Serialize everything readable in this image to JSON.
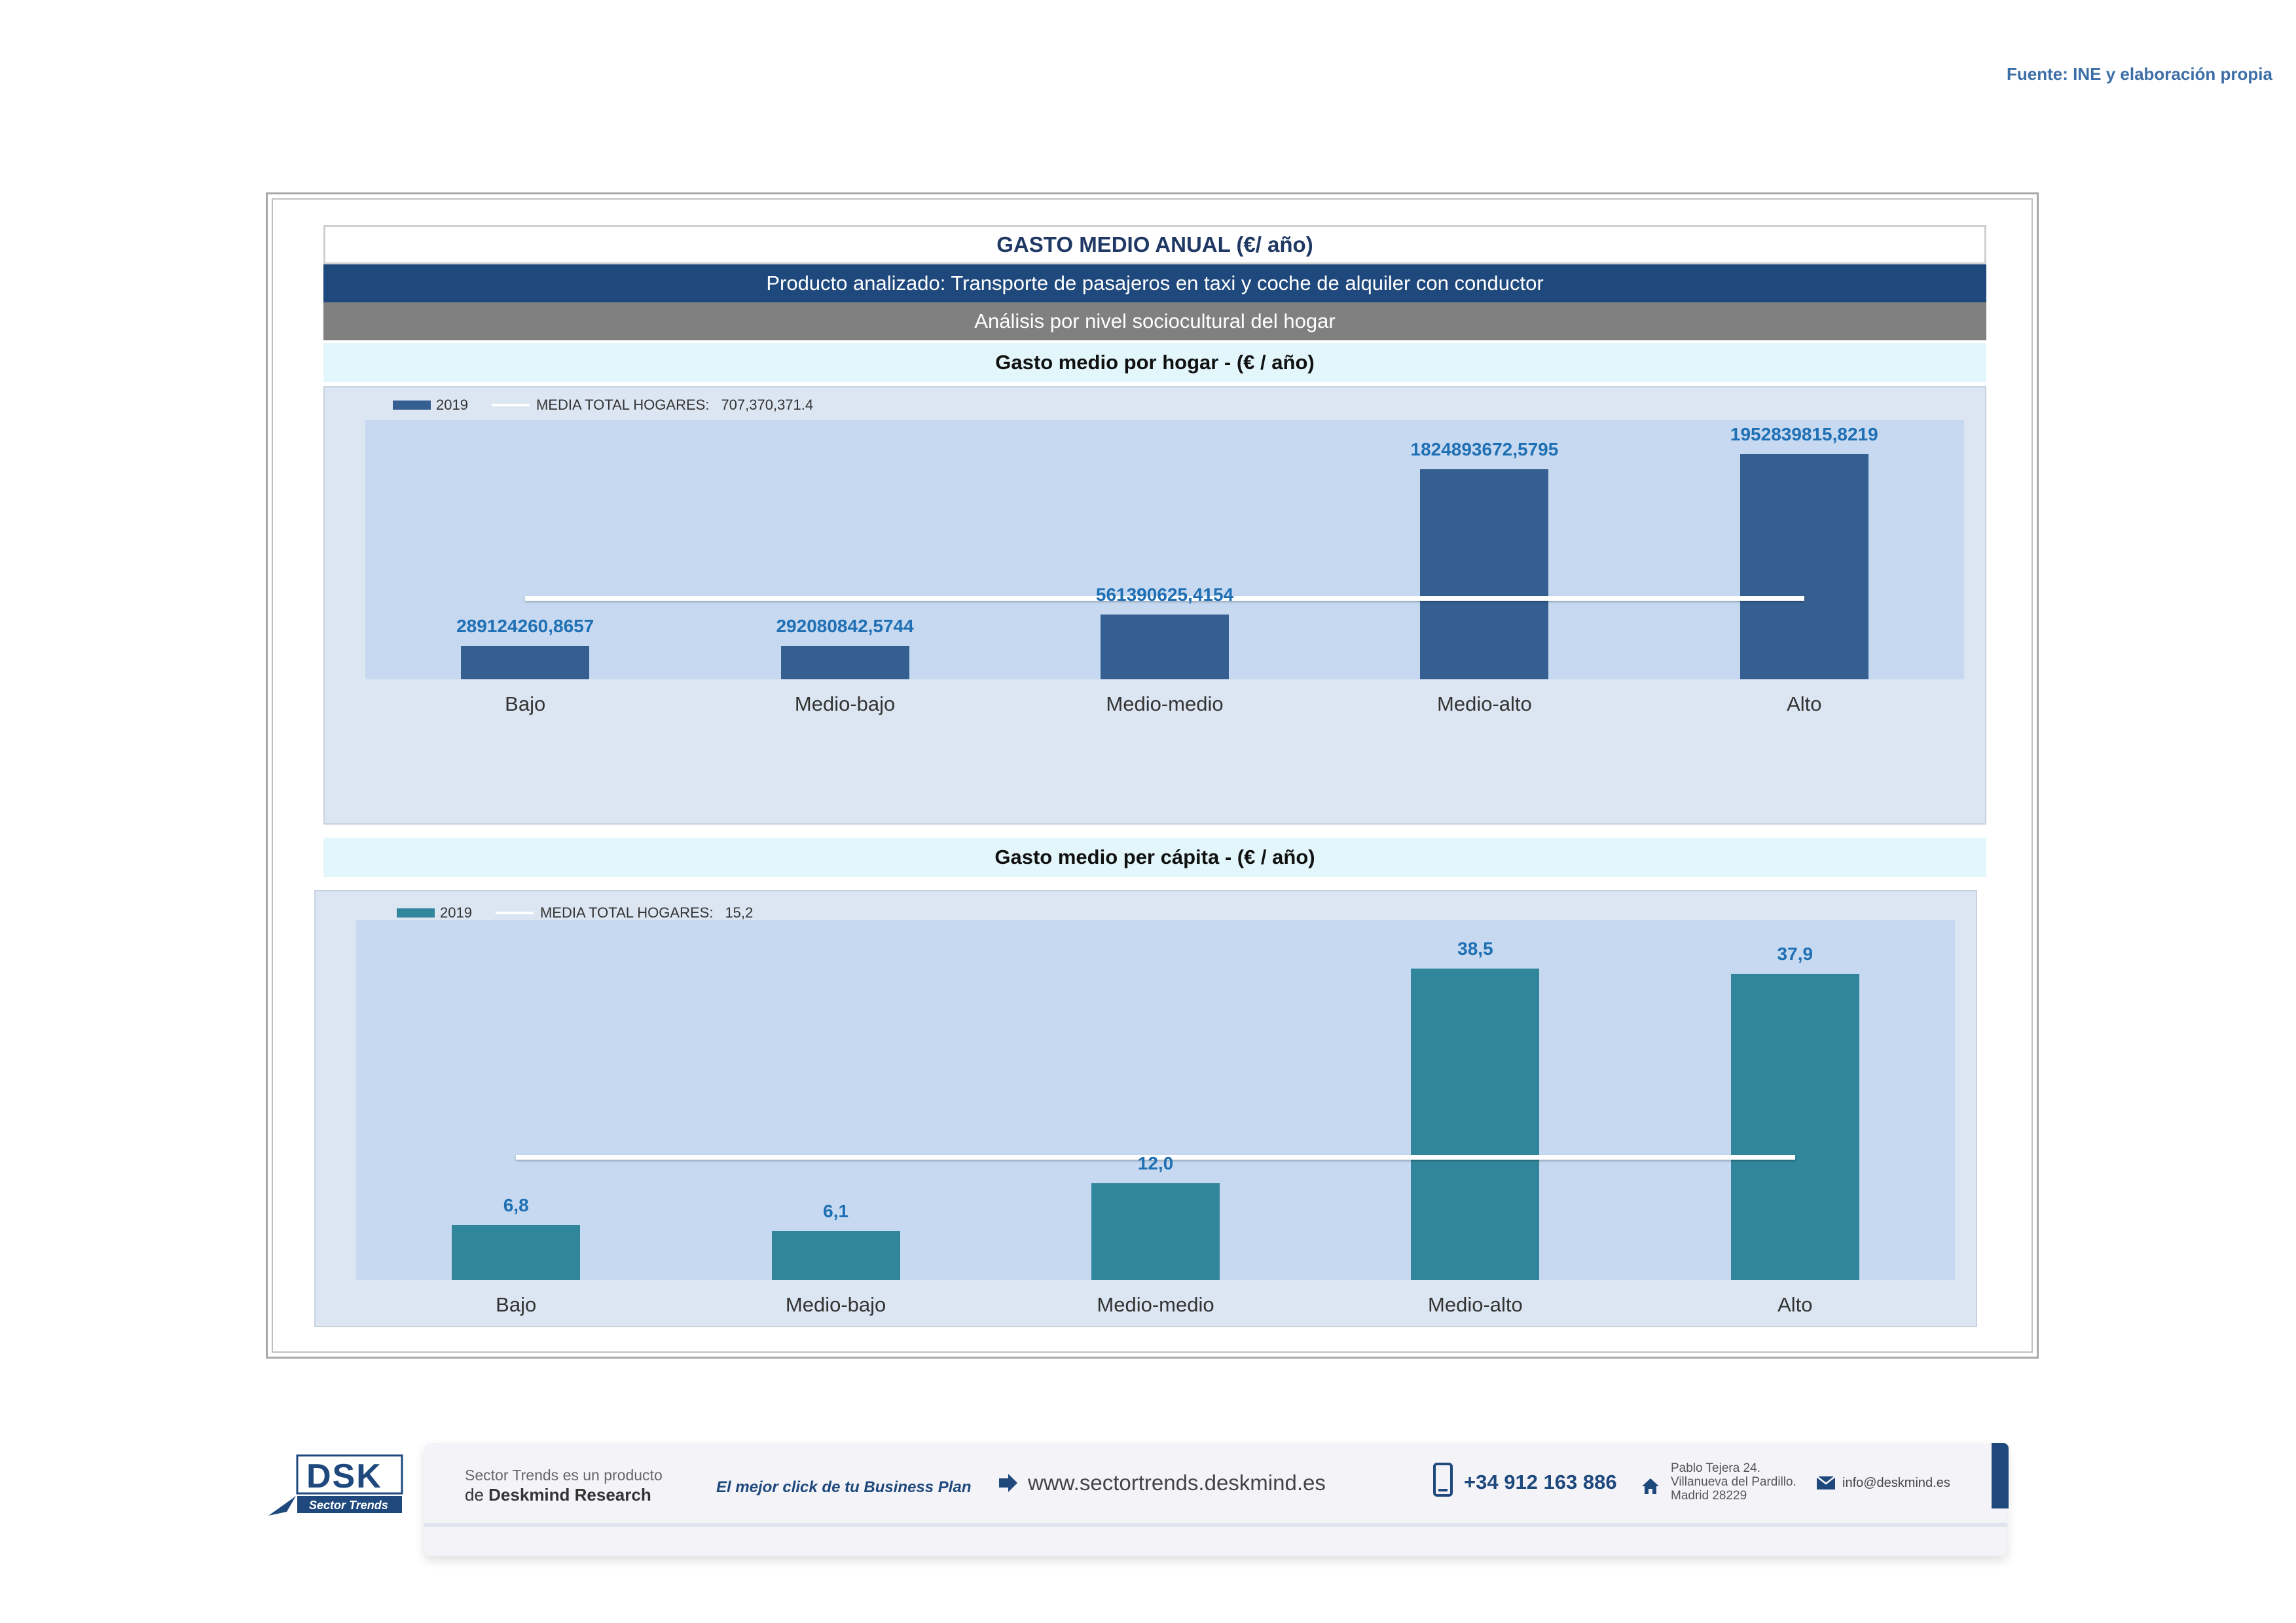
{
  "source": "Fuente: INE y elaboración propia",
  "header": {
    "title": "GASTO MEDIO ANUAL (€/ año)",
    "product": "Producto analizado: Transporte de pasajeros en taxi y coche de alquiler con conductor",
    "analysis": "Análisis por nivel sociocultural del hogar"
  },
  "chart_data": [
    {
      "type": "bar",
      "title": "Gasto medio por hogar -  (€ / año)",
      "categories": [
        "Bajo",
        "Medio-bajo",
        "Medio-medio",
        "Medio-alto",
        "Alto"
      ],
      "series": [
        {
          "name": "2019",
          "values": [
            289124260.8657,
            292080842.5744,
            561390625.4154,
            1824893672.5795,
            1952839815.8219
          ]
        }
      ],
      "data_labels": [
        "289124260,8657",
        "292080842,5744",
        "561390625,4154",
        "1824893672,5795",
        "1952839815,8219"
      ],
      "reference_line": {
        "name": "MEDIA TOTAL  HOGARES:",
        "label": "707,370,371.4",
        "value": 707370371.4
      },
      "ylim": [
        0,
        2250000000
      ],
      "bar_color": "#355f91",
      "legend_position": "top-left",
      "grid": false
    },
    {
      "type": "bar",
      "title": "Gasto medio per cápita -  (€ / año)",
      "categories": [
        "Bajo",
        "Medio-bajo",
        "Medio-medio",
        "Medio-alto",
        "Alto"
      ],
      "series": [
        {
          "name": "2019",
          "values": [
            6.8,
            6.1,
            12.0,
            38.5,
            37.9
          ]
        }
      ],
      "data_labels": [
        "6,8",
        "6,1",
        "12,0",
        "38,5",
        "37,9"
      ],
      "reference_line": {
        "name": "MEDIA TOTAL  HOGARES:",
        "label": "15,2",
        "value": 15.2
      },
      "ylim": [
        0,
        44.5
      ],
      "bar_color": "#31869b",
      "legend_position": "top-left",
      "grid": false
    }
  ],
  "footer": {
    "logo_text": "DSK",
    "logo_sub": "Sector Trends",
    "product_line1": "Sector Trends es un producto",
    "product_line2_prefix": "de ",
    "product_line2_brand": "Deskmind Research",
    "slogan": "El mejor click de tu Business Plan",
    "website": "www.sectortrends.deskmind.es",
    "phone": "+34 912 163 886",
    "address_line1": "Pablo Tejera 24.",
    "address_line2": "Villanueva del Pardillo.",
    "address_line3": "Madrid 28229",
    "email": "info@deskmind.es"
  }
}
